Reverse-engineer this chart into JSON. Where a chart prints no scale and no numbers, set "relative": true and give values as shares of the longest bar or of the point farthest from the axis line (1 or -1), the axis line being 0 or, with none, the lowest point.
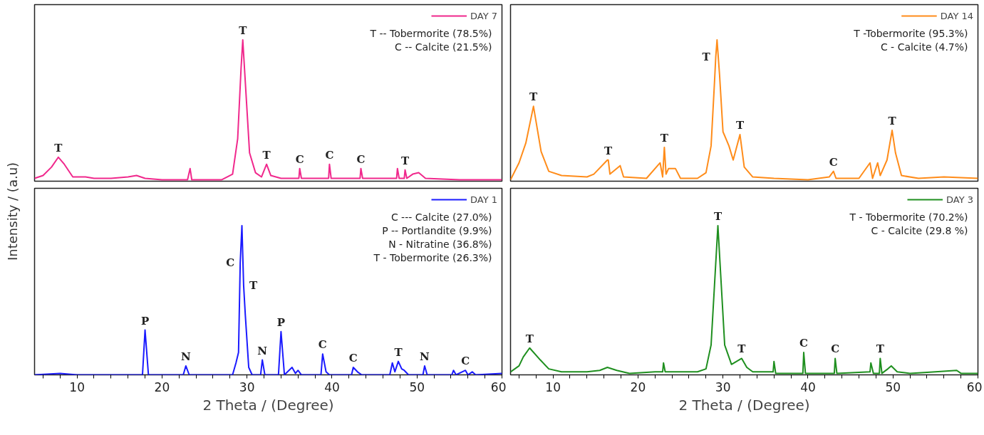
{
  "chart_data": [
    {
      "type": "line",
      "ylabel": "Intensity / (a.u)",
      "relative": true,
      "xlim": [
        5,
        60
      ],
      "tick_labels": false,
      "legend": "top right",
      "grid": false,
      "marker": "none",
      "line_style": "solid",
      "series": [
        {
          "name": "DAY 7",
          "color": "#f0288c",
          "x": [
            5.0,
            6.0,
            7.0,
            7.8,
            8.5,
            9.5,
            11,
            12,
            14,
            16,
            17,
            18,
            20,
            23.0,
            23.3,
            23.5,
            27,
            28.3,
            28.9,
            29.3,
            29.5,
            29.8,
            30.3,
            31,
            31.7,
            32.3,
            32.8,
            34,
            36.1,
            36.2,
            36.4,
            39.6,
            39.7,
            39.9,
            43.3,
            43.4,
            43.6,
            47.6,
            47.7,
            47.9,
            48.5,
            48.6,
            48.8,
            49.5,
            50.2,
            51,
            55,
            60
          ],
          "values": [
            0.02,
            0.04,
            0.1,
            0.17,
            0.12,
            0.03,
            0.03,
            0.02,
            0.02,
            0.03,
            0.04,
            0.02,
            0.01,
            0.01,
            0.09,
            0.01,
            0.01,
            0.05,
            0.3,
            0.8,
            1.0,
            0.7,
            0.2,
            0.06,
            0.03,
            0.12,
            0.04,
            0.02,
            0.02,
            0.09,
            0.02,
            0.02,
            0.12,
            0.02,
            0.02,
            0.09,
            0.02,
            0.02,
            0.09,
            0.02,
            0.02,
            0.08,
            0.02,
            0.05,
            0.06,
            0.02,
            0.01,
            0.01
          ]
        }
      ],
      "annotations": [
        "T -- Tobermorite (78.5%)",
        "C -- Calcite (21.5%)",
        {
          "text": "T",
          "x": 7.8,
          "y": 0.17
        },
        {
          "text": "T",
          "x": 29.5,
          "y": 1.0
        },
        {
          "text": "T",
          "x": 32.3,
          "y": 0.12
        },
        {
          "text": "C",
          "x": 36.2,
          "y": 0.09
        },
        {
          "text": "C",
          "x": 39.7,
          "y": 0.12
        },
        {
          "text": "C",
          "x": 43.4,
          "y": 0.09
        },
        {
          "text": "T",
          "x": 48.6,
          "y": 0.08
        }
      ]
    },
    {
      "type": "line",
      "relative": true,
      "xlim": [
        5,
        60
      ],
      "tick_labels": false,
      "legend": "top right",
      "grid": false,
      "marker": "none",
      "line_style": "solid",
      "series": [
        {
          "name": "DAY 14",
          "color": "#ff8c1a",
          "x": [
            5.0,
            6.0,
            6.8,
            7.7,
            8.6,
            9.5,
            11,
            14,
            14.8,
            16.4,
            16.5,
            16.7,
            17.9,
            18.3,
            21,
            22.6,
            22.9,
            23.1,
            23.3,
            23.6,
            24.4,
            25,
            27,
            28.0,
            28.6,
            29.0,
            29.15,
            29.3,
            29.6,
            30.0,
            30.7,
            31.2,
            32.0,
            32.5,
            33.5,
            36,
            40,
            42.5,
            43.0,
            43.3,
            46,
            47.3,
            47.6,
            48.2,
            48.5,
            49.3,
            49.9,
            50.3,
            51,
            53,
            56,
            60
          ],
          "values": [
            0.01,
            0.13,
            0.27,
            0.53,
            0.21,
            0.07,
            0.04,
            0.03,
            0.05,
            0.15,
            0.15,
            0.05,
            0.11,
            0.03,
            0.02,
            0.13,
            0.03,
            0.24,
            0.05,
            0.09,
            0.09,
            0.02,
            0.02,
            0.06,
            0.25,
            0.7,
            0.88,
            1.0,
            0.75,
            0.35,
            0.25,
            0.15,
            0.33,
            0.1,
            0.03,
            0.02,
            0.01,
            0.03,
            0.07,
            0.02,
            0.02,
            0.13,
            0.02,
            0.13,
            0.04,
            0.15,
            0.36,
            0.2,
            0.04,
            0.02,
            0.03,
            0.02
          ]
        }
      ],
      "annotations": [
        "T -Tobermorite (95.3%)",
        "C - Calcite (4.7%)",
        {
          "text": "T",
          "x": 7.7,
          "y": 0.53
        },
        {
          "text": "T",
          "x": 16.5,
          "y": 0.15
        },
        {
          "text": "T",
          "x": 23.1,
          "y": 0.24
        },
        {
          "text": "T",
          "x": 29.15,
          "y": 0.88
        },
        {
          "text": "T",
          "x": 32.0,
          "y": 0.33
        },
        {
          "text": "C",
          "x": 43.0,
          "y": 0.07
        },
        {
          "text": "T",
          "x": 49.9,
          "y": 0.36
        }
      ]
    },
    {
      "type": "line",
      "xlabel": "2 Theta / (Degree)",
      "relative": true,
      "xlim": [
        5,
        60
      ],
      "tick_labels": "x",
      "legend": "top right",
      "grid": false,
      "marker": "none",
      "line_style": "solid",
      "xticks": [
        {
          "value": 6,
          "label": null
        },
        {
          "value": 8,
          "label": null
        },
        10,
        {
          "value": 12,
          "label": null
        },
        {
          "value": 14,
          "label": null
        },
        {
          "value": 16,
          "label": null
        },
        {
          "value": 18,
          "label": null
        },
        20,
        {
          "value": 22,
          "label": null
        },
        {
          "value": 24,
          "label": null
        },
        {
          "value": 26,
          "label": null
        },
        {
          "value": 28,
          "label": null
        },
        30,
        {
          "value": 32,
          "label": null
        },
        {
          "value": 34,
          "label": null
        },
        {
          "value": 36,
          "label": null
        },
        {
          "value": 38,
          "label": null
        },
        40,
        {
          "value": 42,
          "label": null
        },
        {
          "value": 44,
          "label": null
        },
        {
          "value": 46,
          "label": null
        },
        {
          "value": 48,
          "label": null
        },
        50,
        {
          "value": 52,
          "label": null
        },
        {
          "value": 54,
          "label": null
        },
        {
          "value": 56,
          "label": null
        },
        {
          "value": 58,
          "label": null
        },
        60
      ],
      "series": [
        {
          "name": "DAY 1",
          "color": "#1a1aff",
          "x": [
            5,
            8,
            10,
            17.7,
            18.0,
            18.4,
            22.5,
            22.8,
            23.2,
            28.3,
            28.7,
            29.0,
            29.2,
            29.4,
            29.6,
            29.8,
            30.2,
            30.6,
            31.6,
            31.8,
            32.1,
            33.7,
            34.0,
            34.4,
            35.3,
            35.7,
            36.0,
            36.4,
            38.7,
            38.9,
            39.3,
            39.7,
            42.3,
            42.5,
            43.0,
            43.5,
            46.8,
            47.1,
            47.4,
            47.8,
            48.2,
            48.5,
            49,
            50.7,
            50.9,
            51.2,
            54.1,
            54.3,
            54.6,
            55.7,
            56,
            56.5,
            56.9,
            60
          ],
          "values": [
            0.0,
            0.01,
            0.0,
            0.0,
            0.3,
            0.0,
            0.0,
            0.06,
            0.0,
            0.0,
            0.08,
            0.15,
            0.75,
            1.0,
            0.6,
            0.4,
            0.05,
            0.0,
            0.0,
            0.1,
            0.0,
            0.0,
            0.29,
            0.0,
            0.05,
            0.01,
            0.03,
            0.0,
            0.0,
            0.14,
            0.02,
            0.0,
            0.0,
            0.05,
            0.02,
            0.0,
            0.0,
            0.08,
            0.02,
            0.09,
            0.04,
            0.03,
            0.0,
            0.0,
            0.06,
            0.0,
            0.0,
            0.03,
            0.0,
            0.03,
            0.0,
            0.02,
            0.0,
            0.01
          ]
        }
      ],
      "annotations": [
        "C --- Calcite (27.0%)",
        "P -- Portlandite (9.9%)",
        "N - Nitratine (36.8%)",
        "T - Tobermorite (26.3%)",
        {
          "text": "P",
          "x": 18.0,
          "y": 0.3
        },
        {
          "text": "N",
          "x": 22.8,
          "y": 0.06
        },
        {
          "text": "C",
          "x": 29.2,
          "y": 0.75
        },
        {
          "text": "T",
          "x": 29.6,
          "y": 0.6
        },
        {
          "text": "N",
          "x": 31.8,
          "y": 0.1
        },
        {
          "text": "P",
          "x": 34.0,
          "y": 0.29
        },
        {
          "text": "C",
          "x": 38.9,
          "y": 0.14
        },
        {
          "text": "C",
          "x": 42.5,
          "y": 0.05
        },
        {
          "text": "T",
          "x": 47.8,
          "y": 0.09
        },
        {
          "text": "N",
          "x": 50.9,
          "y": 0.06
        },
        {
          "text": "C",
          "x": 55.7,
          "y": 0.03
        }
      ]
    },
    {
      "type": "line",
      "xlabel": "2 Theta / (Degree)",
      "relative": true,
      "xlim": [
        5,
        60
      ],
      "tick_labels": "x",
      "legend": "top right",
      "grid": false,
      "marker": "none",
      "line_style": "solid",
      "xticks": [
        {
          "value": 6,
          "label": null
        },
        {
          "value": 8,
          "label": null
        },
        10,
        {
          "value": 12,
          "label": null
        },
        {
          "value": 14,
          "label": null
        },
        {
          "value": 16,
          "label": null
        },
        {
          "value": 18,
          "label": null
        },
        20,
        {
          "value": 22,
          "label": null
        },
        {
          "value": 24,
          "label": null
        },
        {
          "value": 26,
          "label": null
        },
        {
          "value": 28,
          "label": null
        },
        30,
        {
          "value": 32,
          "label": null
        },
        {
          "value": 34,
          "label": null
        },
        {
          "value": 36,
          "label": null
        },
        {
          "value": 38,
          "label": null
        },
        40,
        {
          "value": 42,
          "label": null
        },
        {
          "value": 44,
          "label": null
        },
        {
          "value": 46,
          "label": null
        },
        {
          "value": 48,
          "label": null
        },
        50,
        {
          "value": 52,
          "label": null
        },
        {
          "value": 54,
          "label": null
        },
        {
          "value": 56,
          "label": null
        },
        {
          "value": 58,
          "label": null
        },
        60
      ],
      "series": [
        {
          "name": "DAY 3",
          "color": "#1f8f1f",
          "x": [
            5,
            6,
            6.5,
            7.25,
            8.5,
            9.5,
            11,
            14,
            15.5,
            16.4,
            17.5,
            19,
            22,
            22.9,
            23.0,
            23.2,
            27,
            28,
            28.6,
            29.0,
            29.4,
            29.8,
            30.2,
            31,
            32.2,
            32.8,
            33.5,
            35.9,
            36.0,
            36.2,
            39.4,
            39.5,
            39.7,
            43.1,
            43.2,
            43.4,
            47.3,
            47.4,
            47.7,
            48.4,
            48.5,
            48.7,
            49.4,
            49.8,
            50.5,
            52,
            55,
            57.5,
            58,
            60
          ],
          "values": [
            0.02,
            0.06,
            0.12,
            0.18,
            0.1,
            0.04,
            0.02,
            0.02,
            0.03,
            0.05,
            0.03,
            0.01,
            0.02,
            0.02,
            0.08,
            0.02,
            0.02,
            0.04,
            0.2,
            0.6,
            1.0,
            0.6,
            0.2,
            0.07,
            0.11,
            0.05,
            0.02,
            0.02,
            0.09,
            0.01,
            0.01,
            0.15,
            0.01,
            0.01,
            0.11,
            0.01,
            0.02,
            0.08,
            0.01,
            0.01,
            0.11,
            0.01,
            0.04,
            0.06,
            0.02,
            0.01,
            0.02,
            0.03,
            0.01,
            0.01
          ]
        }
      ],
      "annotations": [
        "T - Tobermorite (70.2%)",
        "C - Calcite (29.8 %)",
        {
          "text": "T",
          "x": 7.25,
          "y": 0.18
        },
        {
          "text": "T",
          "x": 29.4,
          "y": 1.0
        },
        {
          "text": "T",
          "x": 32.2,
          "y": 0.11
        },
        {
          "text": "C",
          "x": 39.5,
          "y": 0.15
        },
        {
          "text": "C",
          "x": 43.2,
          "y": 0.11
        },
        {
          "text": "T",
          "x": 48.5,
          "y": 0.11
        }
      ]
    }
  ]
}
